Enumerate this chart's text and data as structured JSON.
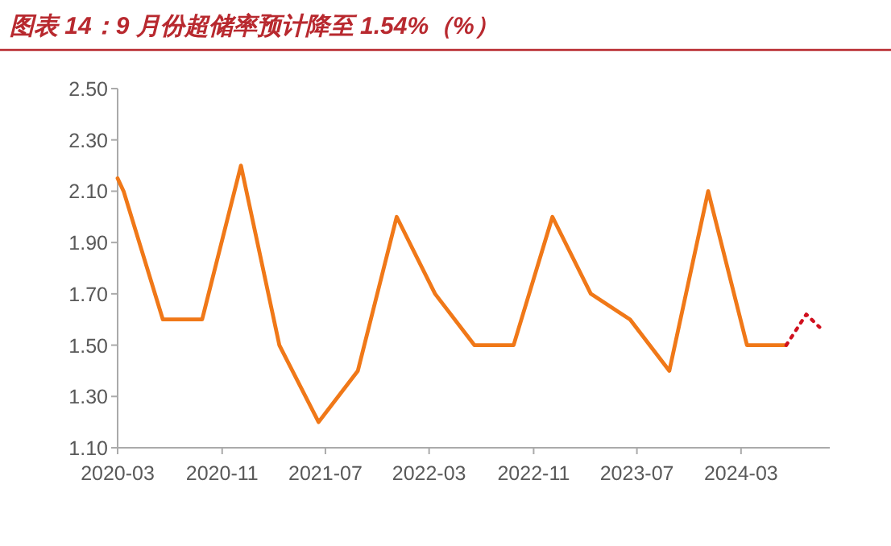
{
  "chart_data": {
    "type": "line",
    "title": "图表 14：9 月份超储率预计降至 1.54%（%）",
    "ylim": [
      1.1,
      2.5
    ],
    "yticks": [
      {
        "value": 1.1,
        "label": "1.10"
      },
      {
        "value": 1.3,
        "label": "1.30"
      },
      {
        "value": 1.5,
        "label": "1.50"
      },
      {
        "value": 1.7,
        "label": "1.70"
      },
      {
        "value": 1.9,
        "label": "1.90"
      },
      {
        "value": 2.1,
        "label": "2.10"
      },
      {
        "value": 2.3,
        "label": "2.30"
      },
      {
        "value": 2.5,
        "label": "2.50"
      }
    ],
    "xlim": [
      "2020-03-01",
      "2024-09-25"
    ],
    "xticks": [
      "2020-03",
      "2020-11",
      "2021-07",
      "2022-03",
      "2022-11",
      "2023-07",
      "2024-03"
    ],
    "grid": false,
    "marker": "none",
    "series": [
      {
        "color": "#f07818",
        "line_style": "solid",
        "x": [
          "2020-03-01",
          "2020-03-15",
          "2020-06-15",
          "2020-09-15",
          "2020-12-15",
          "2021-03-15",
          "2021-06-15",
          "2021-09-15",
          "2021-12-15",
          "2022-03-15",
          "2022-06-15",
          "2022-09-15",
          "2022-12-15",
          "2023-03-15",
          "2023-06-15",
          "2023-09-15",
          "2023-12-15",
          "2024-03-15",
          "2024-06-15"
        ],
        "values": [
          2.15,
          2.1,
          1.6,
          1.6,
          2.2,
          1.5,
          1.2,
          1.4,
          2.0,
          1.7,
          1.5,
          1.5,
          2.0,
          1.7,
          1.6,
          1.4,
          2.1,
          1.5,
          1.5
        ]
      },
      {
        "color": "#d0101e",
        "line_style": "dotted",
        "x": [
          "2024-06-15",
          "2024-08-01",
          "2024-09-01"
        ],
        "values": [
          1.5,
          1.62,
          1.57
        ]
      }
    ]
  }
}
